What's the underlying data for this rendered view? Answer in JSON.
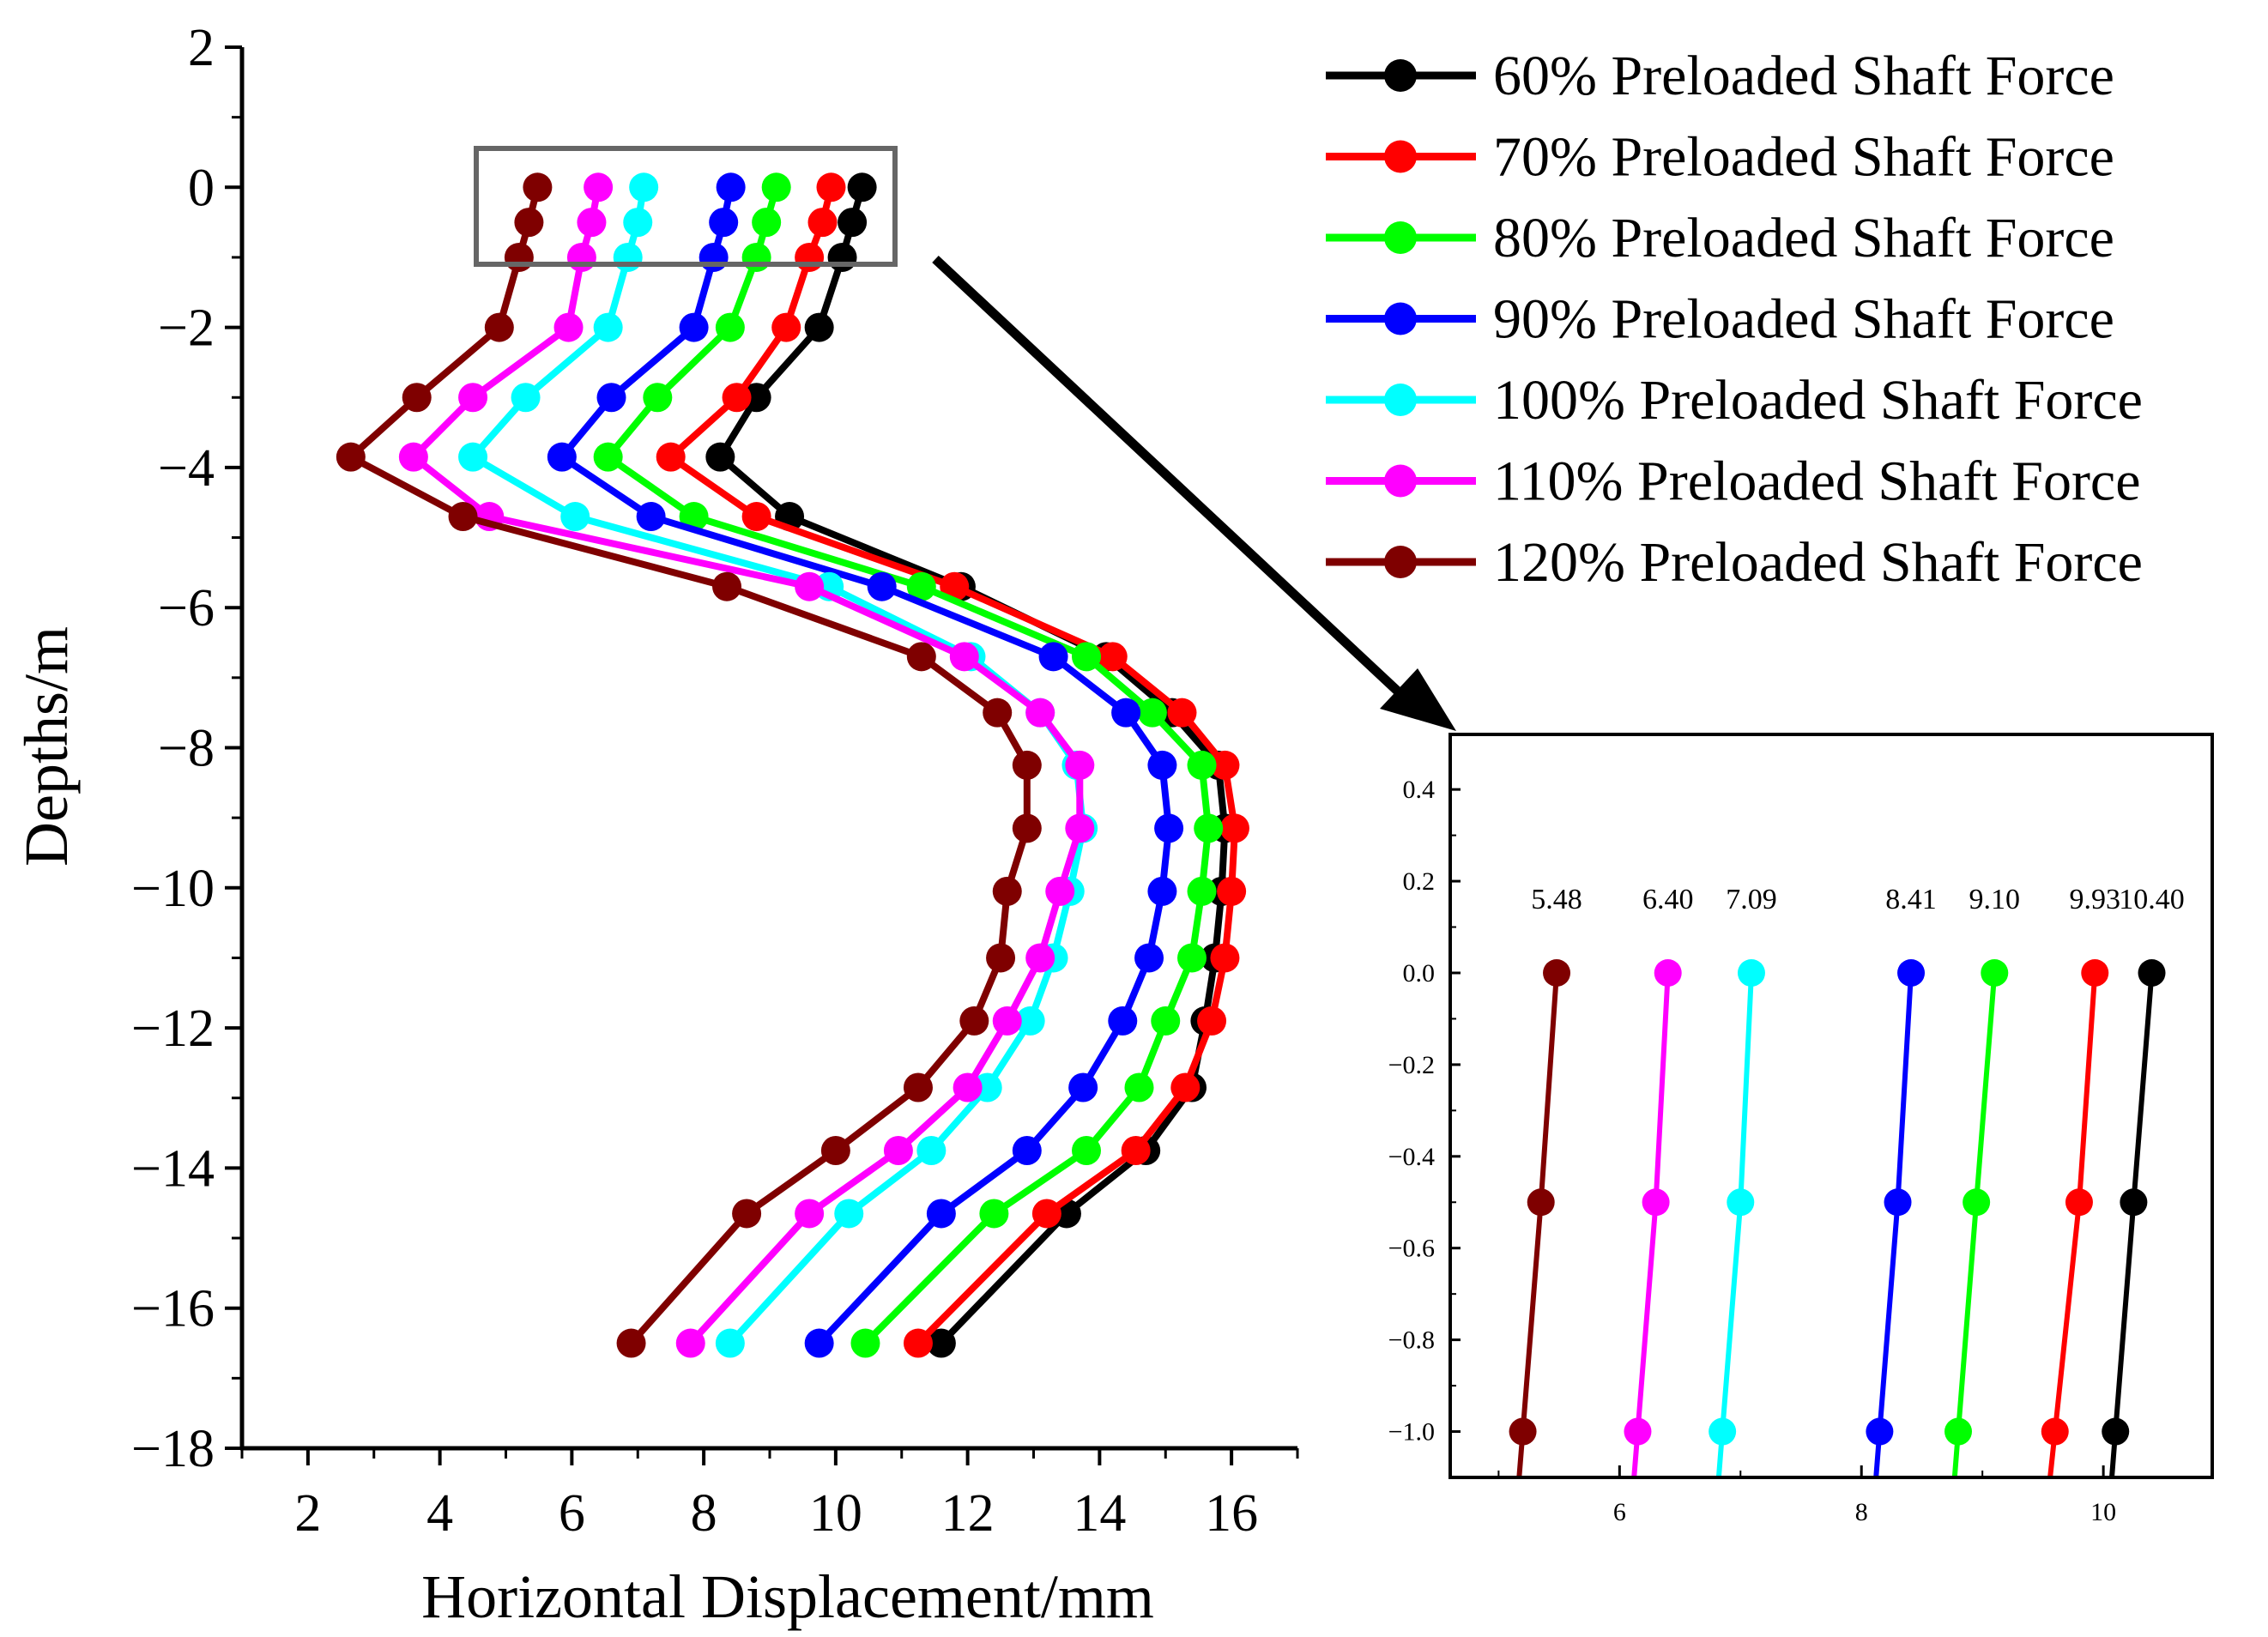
{
  "chart_data": [
    {
      "type": "line",
      "title": "",
      "xlabel": "Horizontal Displacement/mm",
      "ylabel": "Depths/m",
      "xlim": [
        1,
        17
      ],
      "ylim": [
        -18,
        2
      ],
      "xticks": [
        2,
        4,
        6,
        8,
        10,
        12,
        14,
        16
      ],
      "yticks": [
        2,
        0,
        -2,
        -4,
        -6,
        -8,
        -10,
        -12,
        -14,
        -16,
        -18
      ],
      "xtick_labels": [
        "2",
        "4",
        "6",
        "8",
        "10",
        "12",
        "14",
        "16"
      ],
      "ytick_labels": [
        "2",
        "0",
        "−2",
        "−4",
        "−6",
        "−8",
        "−10",
        "−12",
        "−14",
        "−16",
        "−18"
      ],
      "legend_position": "top-right",
      "y": [
        0,
        -0.5,
        -1,
        -2,
        -3,
        -3.85,
        -4.7,
        -5.7,
        -6.7,
        -7.5,
        -8.25,
        -9.15,
        -10.05,
        -11,
        -11.9,
        -12.85,
        -13.75,
        -14.65,
        -16.5
      ],
      "series": [
        {
          "name": "60% Preloaded Shaft Force",
          "color": "#000000",
          "values": [
            10.4,
            10.25,
            10.1,
            9.75,
            8.8,
            8.25,
            9.3,
            11.9,
            14.1,
            15.1,
            15.8,
            15.9,
            15.85,
            15.75,
            15.6,
            15.4,
            14.7,
            13.5,
            11.6
          ]
        },
        {
          "name": "70% Preloaded Shaft Force",
          "color": "#ff0000",
          "values": [
            9.93,
            9.8,
            9.6,
            9.25,
            8.5,
            7.5,
            8.8,
            11.8,
            14.2,
            15.25,
            15.9,
            16.05,
            16.0,
            15.9,
            15.7,
            15.3,
            14.55,
            13.2,
            11.25
          ]
        },
        {
          "name": "80% Preloaded Shaft Force",
          "color": "#00ff00",
          "values": [
            9.1,
            8.95,
            8.8,
            8.4,
            7.3,
            6.55,
            7.85,
            11.3,
            13.8,
            14.8,
            15.55,
            15.65,
            15.55,
            15.4,
            15.0,
            14.6,
            13.8,
            12.4,
            10.45
          ]
        },
        {
          "name": "90% Preloaded Shaft Force",
          "color": "#0000ff",
          "values": [
            8.41,
            8.3,
            8.15,
            7.85,
            6.6,
            5.85,
            7.2,
            10.7,
            13.3,
            14.4,
            14.95,
            15.05,
            14.95,
            14.75,
            14.35,
            13.75,
            12.9,
            11.6,
            9.75
          ]
        },
        {
          "name": "100% Preloaded Shaft Force",
          "color": "#00ffff",
          "values": [
            7.09,
            7.0,
            6.85,
            6.55,
            5.3,
            4.5,
            6.05,
            9.9,
            12.05,
            13.1,
            13.65,
            13.75,
            13.55,
            13.3,
            12.95,
            12.3,
            11.45,
            10.2,
            8.4
          ]
        },
        {
          "name": "110% Preloaded Shaft Force",
          "color": "#ff00ff",
          "values": [
            6.4,
            6.3,
            6.15,
            5.95,
            4.5,
            3.6,
            4.75,
            9.6,
            11.95,
            13.1,
            13.7,
            13.7,
            13.4,
            13.1,
            12.6,
            12.0,
            10.95,
            9.6,
            7.8
          ]
        },
        {
          "name": "120% Preloaded Shaft Force",
          "color": "#7f0000",
          "values": [
            5.48,
            5.35,
            5.2,
            4.9,
            3.65,
            2.65,
            4.35,
            8.35,
            11.3,
            12.45,
            12.9,
            12.9,
            12.6,
            12.5,
            12.1,
            11.25,
            10.0,
            8.65,
            6.9
          ]
        }
      ]
    },
    {
      "type": "line",
      "title": "",
      "xlabel": "",
      "ylabel": "",
      "xlim": [
        4.6,
        10.9
      ],
      "ylim": [
        -1.1,
        0.52
      ],
      "xticks": [
        6,
        8,
        10
      ],
      "yticks": [
        0.4,
        0.2,
        0.0,
        -0.2,
        -0.4,
        -0.6,
        -0.8,
        -1.0
      ],
      "xtick_labels": [
        "6",
        "8",
        "10"
      ],
      "ytick_labels": [
        "0.4",
        "0.2",
        "0.0",
        "−0.2",
        "−0.4",
        "−0.6",
        "−0.8",
        "−1.0"
      ],
      "y": [
        0,
        -0.5,
        -1
      ],
      "series": [
        {
          "name": "60% Preloaded Shaft Force",
          "color": "#000000",
          "values": [
            10.4,
            10.25,
            10.1
          ]
        },
        {
          "name": "70% Preloaded Shaft Force",
          "color": "#ff0000",
          "values": [
            9.93,
            9.8,
            9.6
          ]
        },
        {
          "name": "80% Preloaded Shaft Force",
          "color": "#00ff00",
          "values": [
            9.1,
            8.95,
            8.8
          ]
        },
        {
          "name": "90% Preloaded Shaft Force",
          "color": "#0000ff",
          "values": [
            8.41,
            8.3,
            8.15
          ]
        },
        {
          "name": "100% Preloaded Shaft Force",
          "color": "#00ffff",
          "values": [
            7.09,
            7.0,
            6.85
          ]
        },
        {
          "name": "110% Preloaded Shaft Force",
          "color": "#ff00ff",
          "values": [
            6.4,
            6.3,
            6.15
          ]
        },
        {
          "name": "120% Preloaded Shaft Force",
          "color": "#7f0000",
          "values": [
            5.48,
            5.35,
            5.2
          ]
        }
      ],
      "annotations": [
        "5.48",
        "6.40",
        "7.09",
        "8.41",
        "9.10",
        "9.93",
        "10.40"
      ],
      "annotation_x": [
        5.48,
        6.4,
        7.09,
        8.41,
        9.1,
        9.93,
        10.4
      ]
    }
  ]
}
